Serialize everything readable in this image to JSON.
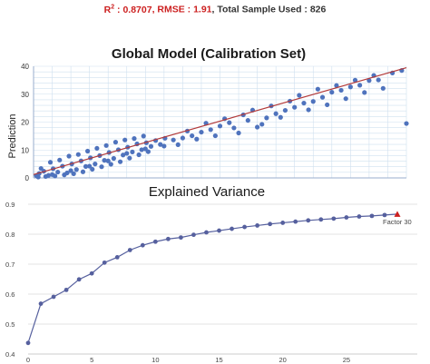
{
  "stats": {
    "r2_label": "R",
    "r2_sup": "2",
    "r2_value": " : 0.8707",
    "rmse_text": ", RMSE : 1.91",
    "sample_text": ", Total Sample Used : 826"
  },
  "chart_data": [
    {
      "type": "scatter",
      "title": "Global Model (Calibration Set)",
      "ylabel": "Prediction",
      "xlabel": "",
      "xlim": [
        0,
        40
      ],
      "ylim": [
        0,
        40
      ],
      "yticks": [
        0,
        10,
        20,
        30,
        40
      ],
      "grid": true,
      "colors": {
        "points": "#4f73bd",
        "fit_line": "#b23a3a",
        "grid": "#cfe0ef",
        "axis": "#9aaecd"
      },
      "fit_line": {
        "x": [
          0,
          40
        ],
        "y": [
          1.2,
          39.5
        ]
      },
      "points": [
        [
          0.3,
          0.8
        ],
        [
          0.6,
          1.6
        ],
        [
          1.1,
          2.4
        ],
        [
          1.6,
          0.9
        ],
        [
          2.1,
          3.3
        ],
        [
          2.6,
          2.1
        ],
        [
          3.1,
          4.2
        ],
        [
          3.6,
          1.8
        ],
        [
          4.1,
          5.0
        ],
        [
          4.6,
          3.0
        ],
        [
          5.1,
          6.1
        ],
        [
          5.6,
          4.1
        ],
        [
          6.1,
          7.2
        ],
        [
          6.6,
          5.0
        ],
        [
          7.1,
          8.0
        ],
        [
          7.6,
          6.3
        ],
        [
          8.1,
          9.1
        ],
        [
          8.6,
          7.0
        ],
        [
          9.1,
          10.1
        ],
        [
          9.6,
          8.2
        ],
        [
          10.1,
          11.0
        ],
        [
          10.6,
          9.3
        ],
        [
          11.1,
          12.2
        ],
        [
          11.6,
          10.1
        ],
        [
          12.1,
          12.6
        ],
        [
          12.6,
          11.3
        ],
        [
          13.1,
          13.4
        ],
        [
          13.6,
          12.0
        ],
        [
          14.1,
          14.2
        ],
        [
          0.8,
          3.4
        ],
        [
          1.8,
          5.6
        ],
        [
          2.8,
          6.4
        ],
        [
          3.8,
          7.8
        ],
        [
          4.8,
          8.4
        ],
        [
          5.8,
          9.6
        ],
        [
          6.8,
          10.6
        ],
        [
          7.8,
          11.6
        ],
        [
          8.8,
          12.8
        ],
        [
          9.8,
          13.6
        ],
        [
          10.8,
          14.1
        ],
        [
          11.8,
          15.0
        ],
        [
          0.5,
          0.3
        ],
        [
          1.3,
          0.5
        ],
        [
          2.3,
          0.7
        ],
        [
          3.3,
          1.1
        ],
        [
          4.3,
          1.5
        ],
        [
          5.3,
          2.2
        ],
        [
          6.3,
          3.1
        ],
        [
          7.3,
          4.0
        ],
        [
          8.3,
          4.9
        ],
        [
          9.3,
          5.8
        ],
        [
          10.3,
          7.1
        ],
        [
          11.3,
          8.3
        ],
        [
          12.3,
          9.4
        ],
        [
          2.0,
          1.2
        ],
        [
          4.0,
          2.6
        ],
        [
          6.0,
          4.2
        ],
        [
          8.0,
          6.1
        ],
        [
          10.0,
          8.8
        ],
        [
          12.0,
          10.4
        ],
        [
          14.0,
          11.4
        ],
        [
          15.0,
          13.6
        ],
        [
          16.0,
          14.3
        ],
        [
          17.0,
          15.1
        ],
        [
          18.0,
          16.4
        ],
        [
          19.0,
          17.3
        ],
        [
          20.0,
          18.6
        ],
        [
          21.0,
          19.8
        ],
        [
          22.0,
          16.1
        ],
        [
          23.0,
          20.6
        ],
        [
          24.0,
          18.2
        ],
        [
          25.0,
          21.5
        ],
        [
          26.0,
          23.0
        ],
        [
          27.0,
          24.2
        ],
        [
          28.0,
          25.3
        ],
        [
          29.0,
          26.8
        ],
        [
          30.0,
          27.4
        ],
        [
          31.0,
          28.9
        ],
        [
          32.0,
          30.7
        ],
        [
          33.0,
          31.4
        ],
        [
          34.0,
          32.6
        ],
        [
          35.0,
          33.2
        ],
        [
          36.0,
          34.9
        ],
        [
          37.0,
          35.1
        ],
        [
          15.5,
          11.9
        ],
        [
          16.5,
          16.8
        ],
        [
          17.5,
          13.9
        ],
        [
          18.5,
          19.6
        ],
        [
          19.5,
          15.1
        ],
        [
          20.5,
          21.2
        ],
        [
          21.5,
          17.9
        ],
        [
          22.5,
          22.6
        ],
        [
          23.5,
          24.3
        ],
        [
          24.5,
          19.2
        ],
        [
          25.5,
          25.8
        ],
        [
          26.5,
          21.7
        ],
        [
          27.5,
          27.5
        ],
        [
          28.5,
          29.6
        ],
        [
          29.5,
          24.4
        ],
        [
          30.5,
          31.8
        ],
        [
          31.5,
          26.2
        ],
        [
          32.5,
          33.1
        ],
        [
          33.5,
          28.4
        ],
        [
          34.5,
          35.0
        ],
        [
          35.5,
          30.6
        ],
        [
          36.5,
          36.7
        ],
        [
          37.5,
          32.1
        ],
        [
          38.5,
          37.6
        ],
        [
          39.5,
          38.5
        ],
        [
          40.0,
          19.5
        ]
      ]
    },
    {
      "type": "line",
      "title": "Explained Variance",
      "xlim": [
        0,
        29
      ],
      "ylim": [
        0.4,
        0.9
      ],
      "xticks": [
        0,
        5,
        10,
        15,
        20,
        25
      ],
      "yticks": [
        0.4,
        0.5,
        0.6,
        0.7,
        0.8,
        0.9
      ],
      "grid": true,
      "colors": {
        "line": "#56609e",
        "marker": "#56609e",
        "highlight": "#cc1f1f",
        "grid": "#e3e3e3"
      },
      "annotation": "Factor 30",
      "x": [
        0,
        1,
        2,
        3,
        4,
        5,
        6,
        7,
        8,
        9,
        10,
        11,
        12,
        13,
        14,
        15,
        16,
        17,
        18,
        19,
        20,
        21,
        22,
        23,
        24,
        25,
        26,
        27,
        28,
        29
      ],
      "y": [
        0.437,
        0.568,
        0.591,
        0.614,
        0.649,
        0.669,
        0.705,
        0.723,
        0.747,
        0.763,
        0.775,
        0.784,
        0.789,
        0.798,
        0.806,
        0.812,
        0.818,
        0.824,
        0.829,
        0.834,
        0.838,
        0.842,
        0.846,
        0.849,
        0.852,
        0.856,
        0.859,
        0.861,
        0.864,
        0.867
      ]
    }
  ]
}
